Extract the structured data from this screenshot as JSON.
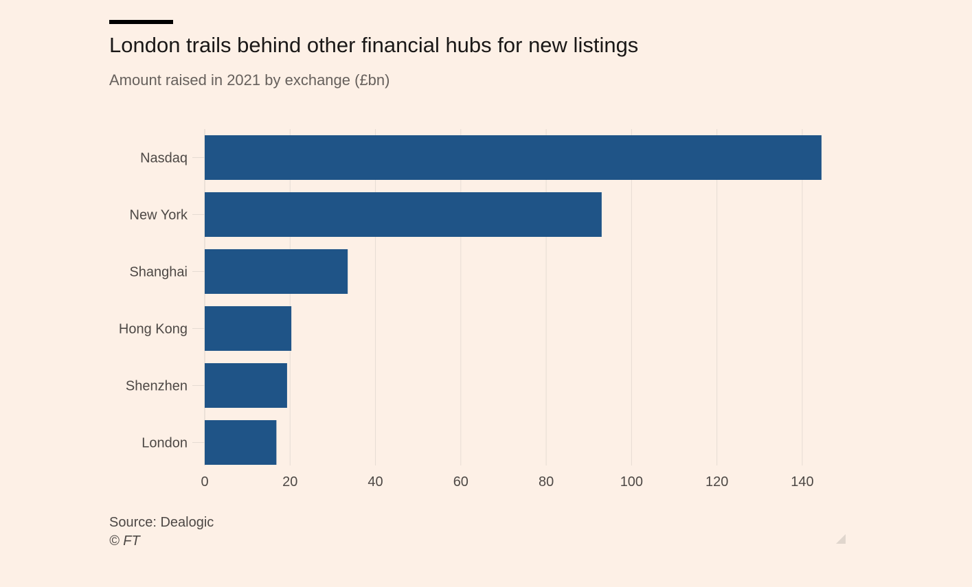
{
  "header": {
    "title": "London trails behind other financial hubs for new listings",
    "subtitle": "Amount raised in 2021 by exchange (£bn)"
  },
  "footer": {
    "source": "Source: Dealogic",
    "copyright": "© FT"
  },
  "colors": {
    "background": "#fdf0e6",
    "bar": "#1f5487",
    "grid": "#e6dcd3",
    "label": "#4d4845"
  },
  "icons": {
    "corner": "resize-corner-icon"
  },
  "chart_data": {
    "type": "bar",
    "orientation": "horizontal",
    "title": "London trails behind other financial hubs for new listings",
    "subtitle": "Amount raised in 2021 by exchange (£bn)",
    "categories": [
      "Nasdaq",
      "New York",
      "Shanghai",
      "Hong Kong",
      "Shenzhen",
      "London"
    ],
    "values": [
      144.5,
      93,
      33.5,
      20.3,
      19.3,
      16.8
    ],
    "xlim": [
      0,
      145
    ],
    "xticks": [
      0,
      20,
      40,
      60,
      80,
      100,
      120,
      140
    ],
    "xlabel": "",
    "ylabel": "",
    "grid": true,
    "legend": "none"
  }
}
